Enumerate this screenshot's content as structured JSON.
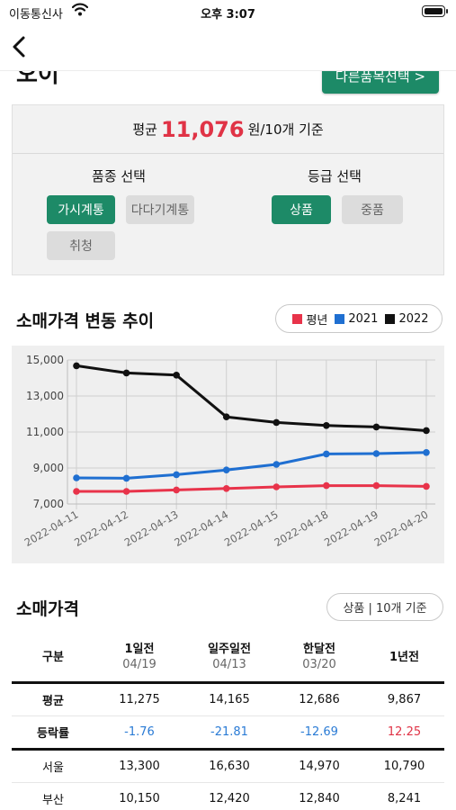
{
  "status_bar": {
    "carrier": "이동통신사",
    "time": "오후 3:07"
  },
  "nav": {
    "title": "오이",
    "other_button": "다른품목선택 >"
  },
  "summary": {
    "prefix": "평균",
    "value": "11,076",
    "suffix": "원/10개 기준",
    "variety_label": "품종 선택",
    "grade_label": "등급 선택",
    "varieties": [
      {
        "label": "가시계통",
        "selected": true
      },
      {
        "label": "다다기계통",
        "selected": false
      },
      {
        "label": "취청",
        "selected": false
      }
    ],
    "grades": [
      {
        "label": "상품",
        "selected": true
      },
      {
        "label": "중품",
        "selected": false
      }
    ]
  },
  "trend": {
    "title": "소매가격 변동 추이",
    "legend": [
      {
        "name": "평년",
        "color": "#e8334a"
      },
      {
        "name": "2021",
        "color": "#1f6fd1"
      },
      {
        "name": "2022",
        "color": "#111111"
      }
    ]
  },
  "chart_data": {
    "type": "line",
    "x": [
      "2022-04-11",
      "2022-04-12",
      "2022-04-13",
      "2022-04-14",
      "2022-04-15",
      "2022-04-18",
      "2022-04-19",
      "2022-04-20"
    ],
    "series": [
      {
        "name": "평년",
        "color": "#e8334a",
        "values": [
          7700,
          7700,
          7780,
          7860,
          7950,
          8020,
          8020,
          7980
        ]
      },
      {
        "name": "2021",
        "color": "#1f6fd1",
        "values": [
          8450,
          8430,
          8630,
          8890,
          9200,
          9780,
          9800,
          9860
        ]
      },
      {
        "name": "2022",
        "color": "#111111",
        "values": [
          14680,
          14280,
          14160,
          11840,
          11530,
          11360,
          11280,
          11076
        ]
      }
    ],
    "yticks": [
      "15,000",
      "13,000",
      "11,000",
      "9,000",
      "7,000"
    ],
    "ylim": [
      7000,
      15000
    ],
    "grid": true,
    "legend": "top-right"
  },
  "retail": {
    "title": "소매가격",
    "basis": "상품 | 10개 기준",
    "headers": [
      {
        "label": "구분",
        "sub": ""
      },
      {
        "label": "1일전",
        "sub": "04/19"
      },
      {
        "label": "일주일전",
        "sub": "04/13"
      },
      {
        "label": "한달전",
        "sub": "03/20"
      },
      {
        "label": "1년전",
        "sub": ""
      }
    ],
    "avg_row": {
      "label": "평균",
      "values": [
        "11,275",
        "14,165",
        "12,686",
        "9,867"
      ]
    },
    "rate_row": {
      "label": "등락률",
      "values": [
        "-1.76",
        "-21.81",
        "-12.69",
        "12.25"
      ]
    },
    "cities": [
      {
        "label": "서울",
        "values": [
          "13,300",
          "16,630",
          "14,970",
          "10,790"
        ]
      },
      {
        "label": "부산",
        "values": [
          "10,150",
          "12,420",
          "12,840",
          "8,241"
        ]
      }
    ]
  }
}
